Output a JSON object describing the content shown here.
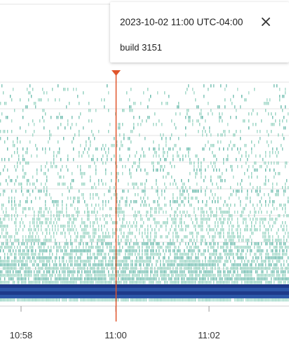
{
  "chart_data": {
    "type": "heatmap",
    "x_ticks": [
      "10:58",
      "11:00",
      "11:02"
    ],
    "marker_time": "11:00",
    "colors": {
      "light_teal": "#8fd0bd",
      "mid_teal": "#62b7a8",
      "dark_blue": "#2d57a8",
      "navy": "#1e3a8a",
      "marker": "#e0552b",
      "grid": "#e3e3e3"
    },
    "grid": true
  },
  "tooltip": {
    "title": "2023-10-02 11:00 UTC-04:00",
    "subtitle": "build 3151",
    "close_icon": "close-icon"
  }
}
